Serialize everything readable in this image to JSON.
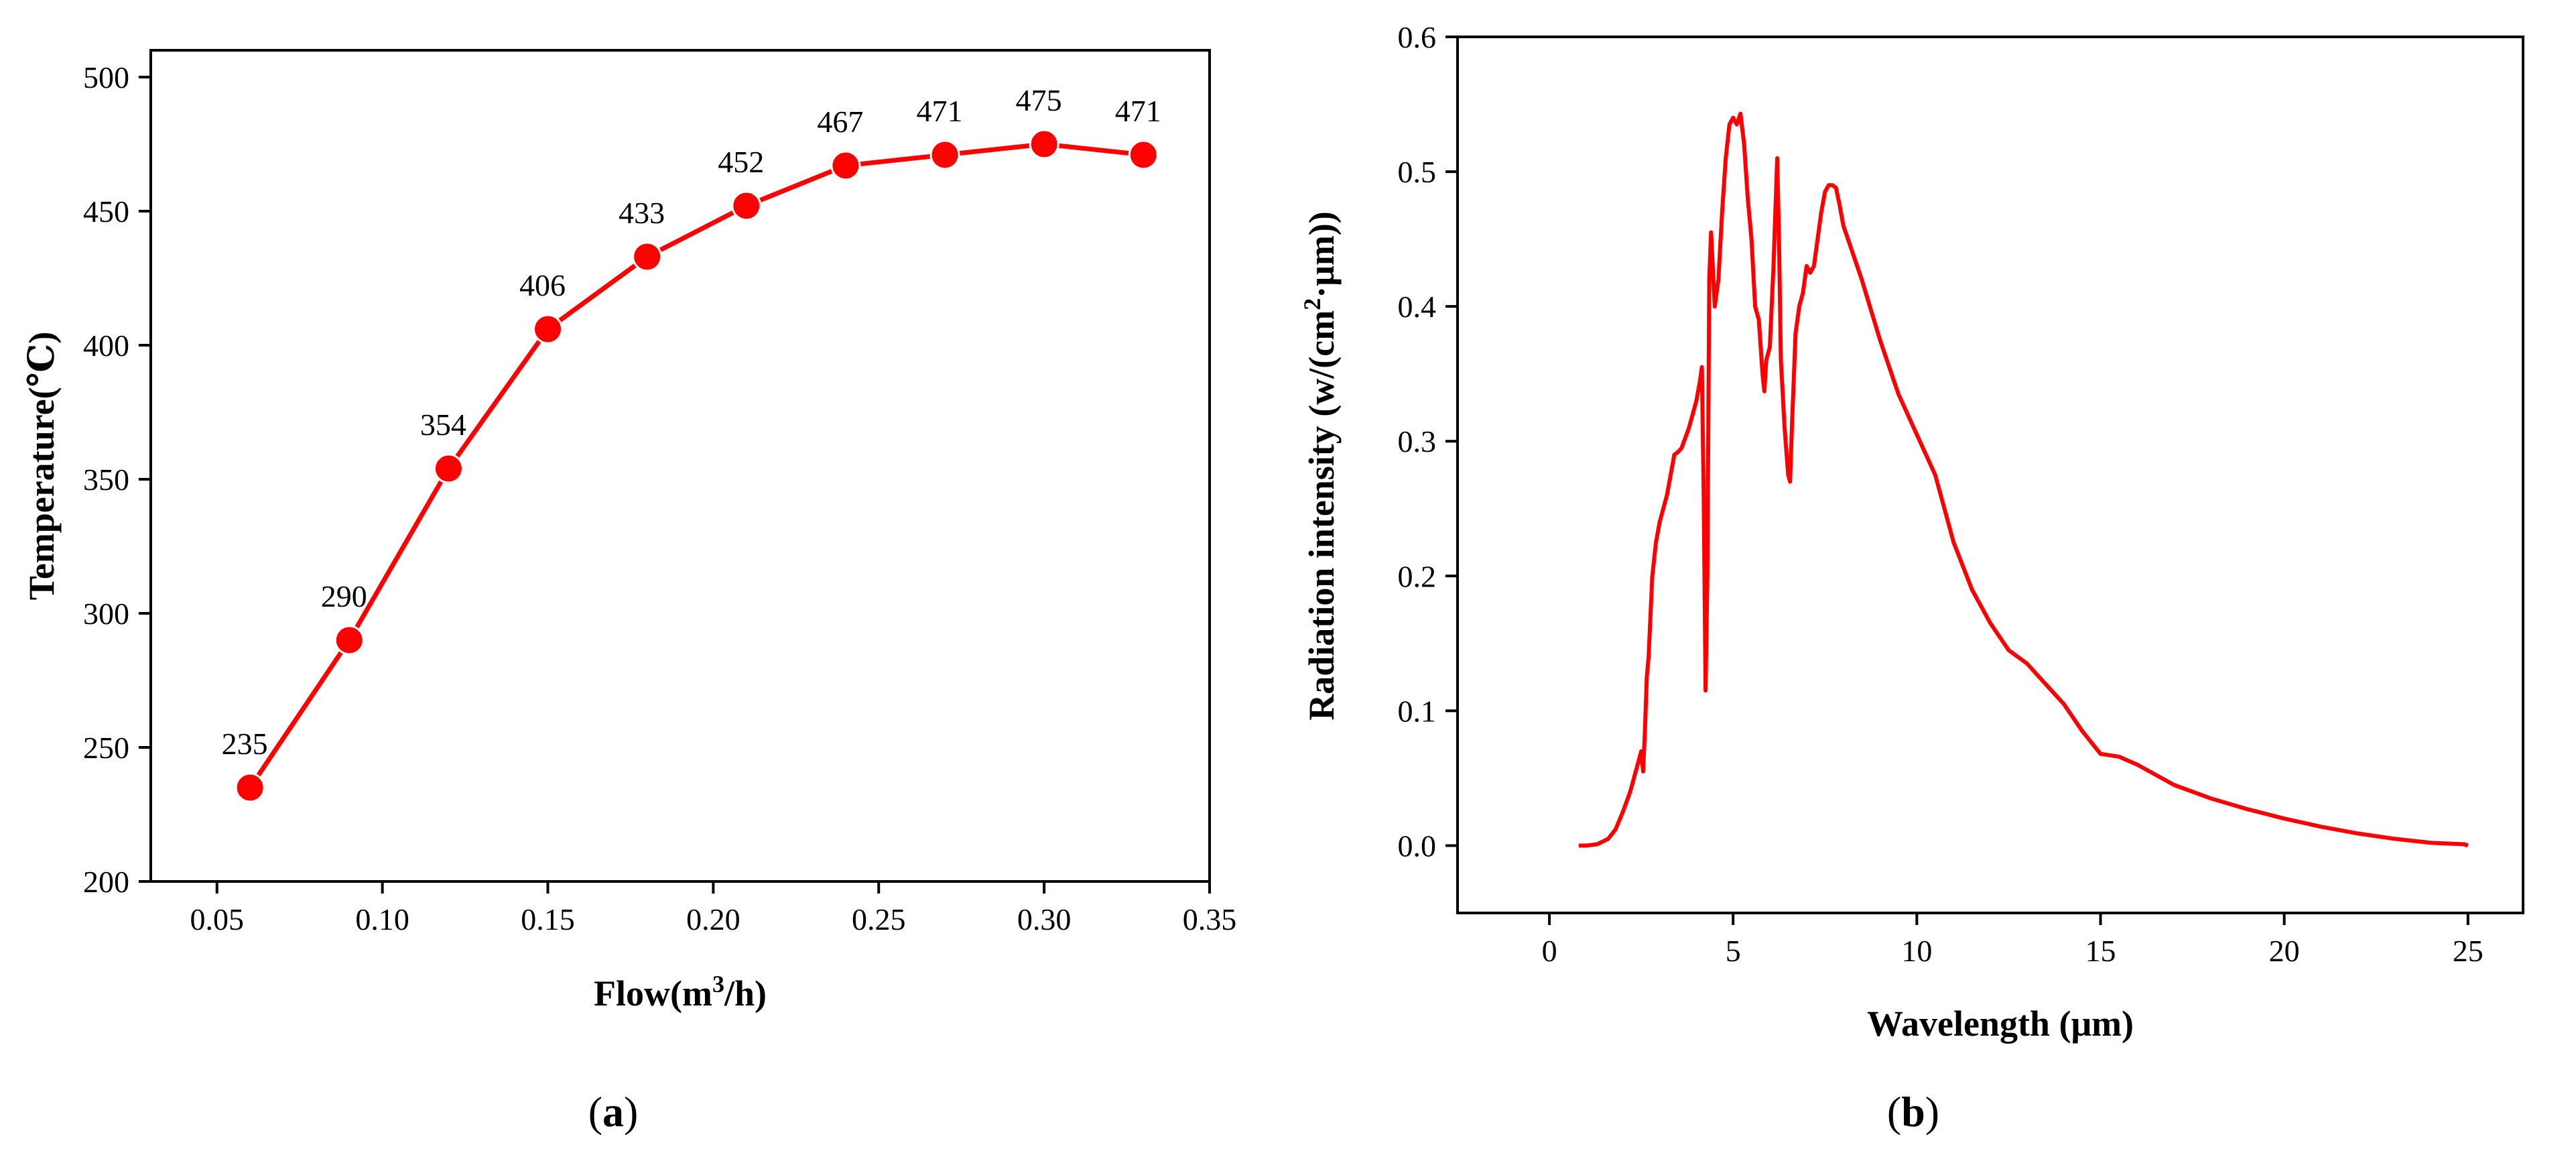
{
  "chart_data": [
    {
      "type": "line",
      "panel": "a",
      "xlabel_main": "Flow(m",
      "xlabel_sup": "3",
      "xlabel_tail": "/h)",
      "ylabel": "Temperature(℃)",
      "xlim": [
        0.03,
        0.35
      ],
      "ylim": [
        200,
        510
      ],
      "xticks": [
        0.05,
        0.1,
        0.15,
        0.2,
        0.25,
        0.3,
        0.35
      ],
      "xtick_labels": [
        "0.05",
        "0.10",
        "0.15",
        "0.20",
        "0.25",
        "0.30",
        "0.35"
      ],
      "yticks": [
        200,
        250,
        300,
        350,
        400,
        450,
        500
      ],
      "ytick_labels": [
        "200",
        "250",
        "300",
        "350",
        "400",
        "450",
        "500"
      ],
      "series": [
        {
          "name": "Temperature",
          "color": "#ff0000",
          "x": [
            0.06,
            0.09,
            0.12,
            0.15,
            0.18,
            0.21,
            0.24,
            0.27,
            0.3,
            0.33
          ],
          "values": [
            235,
            290,
            354,
            406,
            433,
            452,
            467,
            471,
            475,
            471
          ],
          "labels": [
            "235",
            "290",
            "354",
            "406",
            "433",
            "452",
            "467",
            "471",
            "475",
            "471"
          ]
        }
      ]
    },
    {
      "type": "line",
      "panel": "b",
      "xlabel": "Wavelength (μm)",
      "ylabel_main": "Radiation intensity (w/(cm",
      "ylabel_sup": "2",
      "ylabel_tail": "·μm))",
      "xlim": [
        -2.5,
        26.5
      ],
      "ylim": [
        -0.05,
        0.6
      ],
      "xticks": [
        0,
        5,
        10,
        15,
        20,
        25
      ],
      "xtick_labels": [
        "0",
        "5",
        "10",
        "15",
        "20",
        "25"
      ],
      "yticks": [
        0.0,
        0.1,
        0.2,
        0.3,
        0.4,
        0.5,
        0.6
      ],
      "ytick_labels": [
        "0.0",
        "0.1",
        "0.2",
        "0.3",
        "0.4",
        "0.5",
        "0.6"
      ],
      "series": [
        {
          "name": "Radiation intensity",
          "color": "#ff0000",
          "x": [
            0.8,
            1.0,
            1.3,
            1.6,
            1.8,
            2.0,
            2.2,
            2.4,
            2.5,
            2.55,
            2.6,
            2.65,
            2.7,
            2.8,
            2.9,
            3.0,
            3.2,
            3.4,
            3.5,
            3.6,
            3.8,
            4.0,
            4.1,
            4.15,
            4.2,
            4.25,
            4.3,
            4.35,
            4.4,
            4.5,
            4.6,
            4.7,
            4.8,
            4.9,
            5.0,
            5.1,
            5.2,
            5.3,
            5.4,
            5.5,
            5.6,
            5.7,
            5.8,
            5.85,
            5.9,
            6.0,
            6.1,
            6.2,
            6.25,
            6.3,
            6.4,
            6.5,
            6.55,
            6.6,
            6.7,
            6.8,
            6.9,
            7.0,
            7.1,
            7.2,
            7.3,
            7.4,
            7.5,
            7.6,
            7.7,
            7.8,
            7.9,
            8.0,
            8.5,
            9.0,
            9.5,
            10.0,
            10.5,
            11.0,
            11.5,
            12.0,
            12.5,
            13.0,
            13.5,
            14.0,
            14.5,
            15.0,
            15.5,
            16.0,
            17.0,
            18.0,
            19.0,
            20.0,
            21.0,
            22.0,
            23.0,
            24.0,
            24.9,
            25.0
          ],
          "values": [
            0.0,
            0.0,
            0.001,
            0.005,
            0.012,
            0.025,
            0.04,
            0.06,
            0.07,
            0.055,
            0.085,
            0.125,
            0.14,
            0.2,
            0.225,
            0.24,
            0.26,
            0.29,
            0.292,
            0.295,
            0.31,
            0.33,
            0.345,
            0.355,
            0.26,
            0.115,
            0.2,
            0.42,
            0.455,
            0.4,
            0.42,
            0.47,
            0.51,
            0.535,
            0.54,
            0.535,
            0.543,
            0.52,
            0.48,
            0.45,
            0.4,
            0.39,
            0.35,
            0.337,
            0.36,
            0.37,
            0.43,
            0.51,
            0.45,
            0.36,
            0.31,
            0.275,
            0.27,
            0.31,
            0.38,
            0.4,
            0.41,
            0.43,
            0.425,
            0.43,
            0.45,
            0.47,
            0.485,
            0.49,
            0.49,
            0.488,
            0.475,
            0.46,
            0.42,
            0.375,
            0.335,
            0.305,
            0.275,
            0.225,
            0.19,
            0.165,
            0.145,
            0.135,
            0.12,
            0.105,
            0.085,
            0.068,
            0.066,
            0.06,
            0.045,
            0.035,
            0.027,
            0.02,
            0.014,
            0.009,
            0.005,
            0.002,
            0.001,
            0.0
          ]
        }
      ]
    }
  ],
  "panel_labels": {
    "a_open": "(",
    "a_letter": "a",
    "a_close": ")",
    "b_open": "(",
    "b_letter": "b",
    "b_close": ")"
  }
}
